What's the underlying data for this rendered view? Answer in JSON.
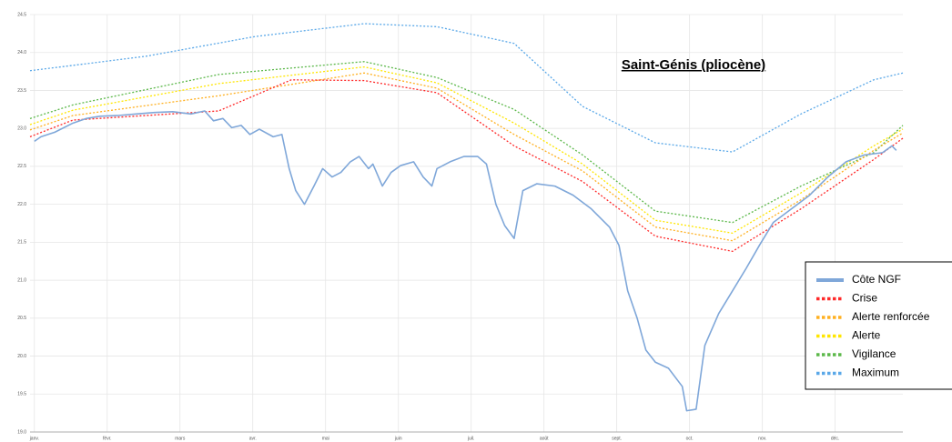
{
  "chart_data": {
    "type": "line",
    "title": "Saint-Génis (pliocène)",
    "xlim": [
      -0.06,
      11.93
    ],
    "xticks": [
      {
        "value": 0,
        "label": "janv."
      },
      {
        "value": 1,
        "label": "févr."
      },
      {
        "value": 2,
        "label": "mars"
      },
      {
        "value": 3,
        "label": "avr."
      },
      {
        "value": 4,
        "label": "mai"
      },
      {
        "value": 5,
        "label": "juin"
      },
      {
        "value": 6,
        "label": "juil."
      },
      {
        "value": 7,
        "label": "août"
      },
      {
        "value": 8,
        "label": "sept."
      },
      {
        "value": 9,
        "label": "oct."
      },
      {
        "value": 10,
        "label": "nov."
      },
      {
        "value": 11,
        "label": "déc."
      }
    ],
    "ylim": [
      19.0,
      24.5
    ],
    "yticks": [
      {
        "value": 19,
        "label": "19.0"
      },
      19.5,
      {
        "value": 20,
        "label": "20.0"
      },
      20.5,
      {
        "value": 21,
        "label": "21.0"
      },
      21.5,
      {
        "value": 22,
        "label": "22.0"
      },
      22.5,
      {
        "value": 23,
        "label": "23.0"
      },
      23.5,
      {
        "value": 24,
        "label": "24.0"
      },
      24.5
    ],
    "grid": true,
    "legend": "lower right",
    "series": [
      {
        "name": "Côte NGF",
        "color": "#7fa7d9",
        "style": "solid",
        "x": [
          0,
          0.09,
          0.28,
          0.53,
          0.71,
          0.9,
          1.15,
          1.4,
          1.65,
          1.9,
          2.15,
          2.34,
          2.46,
          2.59,
          2.71,
          2.84,
          2.96,
          3.09,
          3.28,
          3.4,
          3.5,
          3.59,
          3.71,
          3.84,
          3.96,
          4.09,
          4.21,
          4.34,
          4.46,
          4.59,
          4.65,
          4.78,
          4.9,
          5.03,
          5.21,
          5.34,
          5.46,
          5.53,
          5.71,
          5.9,
          6.09,
          6.21,
          6.34,
          6.46,
          6.59,
          6.71,
          6.9,
          7.15,
          7.4,
          7.65,
          7.9,
          8.03,
          8.15,
          8.28,
          8.4,
          8.53,
          8.71,
          8.9,
          8.96,
          9.09,
          9.21,
          9.4,
          9.59,
          9.78,
          9.96,
          10.15,
          10.4,
          10.65,
          10.9,
          11.15,
          11.4,
          11.65,
          11.78,
          11.84
        ],
        "values": [
          22.83,
          22.89,
          22.95,
          23.07,
          23.13,
          23.16,
          23.17,
          23.19,
          23.21,
          23.22,
          23.19,
          23.23,
          23.1,
          23.13,
          23.01,
          23.04,
          22.92,
          22.99,
          22.89,
          22.92,
          22.47,
          22.18,
          22.0,
          22.24,
          22.47,
          22.36,
          22.42,
          22.56,
          22.63,
          22.47,
          22.53,
          22.24,
          22.42,
          22.51,
          22.56,
          22.36,
          22.24,
          22.47,
          22.56,
          22.63,
          22.63,
          22.53,
          22.0,
          21.72,
          21.55,
          22.18,
          22.27,
          22.24,
          22.12,
          21.94,
          21.7,
          21.46,
          20.86,
          20.5,
          20.08,
          19.92,
          19.84,
          19.6,
          19.28,
          19.3,
          20.14,
          20.56,
          20.86,
          21.16,
          21.46,
          21.76,
          21.94,
          22.12,
          22.36,
          22.56,
          22.65,
          22.68,
          22.77,
          22.71
        ]
      },
      {
        "name": "Crise",
        "color": "#ff2a2a",
        "style": "dotted",
        "x": [
          -0.06,
          0.53,
          2.53,
          3.53,
          4.53,
          5.53,
          6.59,
          7.53,
          8.53,
          9.59,
          10.53,
          11.53,
          11.93
        ],
        "values": [
          22.89,
          23.11,
          23.23,
          23.64,
          23.63,
          23.47,
          22.77,
          22.3,
          21.58,
          21.38,
          21.94,
          22.59,
          22.87
        ]
      },
      {
        "name": "Alerte renforcée",
        "color": "#ffb020",
        "style": "dotted",
        "x": [
          -0.06,
          0.53,
          2.53,
          4.53,
          5.53,
          6.59,
          7.53,
          8.53,
          9.59,
          10.53,
          11.53,
          11.93
        ],
        "values": [
          22.98,
          23.17,
          23.43,
          23.73,
          23.53,
          22.92,
          22.44,
          21.7,
          21.52,
          22.06,
          22.71,
          22.94
        ]
      },
      {
        "name": "Alerte",
        "color": "#ffe600",
        "style": "dotted",
        "x": [
          -0.06,
          0.53,
          2.53,
          4.53,
          5.53,
          6.59,
          7.53,
          8.53,
          9.59,
          10.53,
          11.53,
          11.93
        ],
        "values": [
          23.05,
          23.24,
          23.59,
          23.81,
          23.6,
          23.07,
          22.53,
          21.79,
          21.62,
          22.15,
          22.77,
          22.99
        ]
      },
      {
        "name": "Vigilance",
        "color": "#5cb84a",
        "style": "dotted",
        "x": [
          -0.06,
          0.53,
          2.53,
          4.53,
          5.53,
          6.59,
          7.53,
          8.53,
          9.59,
          10.53,
          11.53,
          11.93
        ],
        "values": [
          23.13,
          23.31,
          23.71,
          23.88,
          23.67,
          23.25,
          22.65,
          21.91,
          21.76,
          22.24,
          22.68,
          23.04
        ]
      },
      {
        "name": "Maximum",
        "color": "#5aa8e8",
        "style": "dotted",
        "x": [
          -0.06,
          1.53,
          3.03,
          4.53,
          5.53,
          6.59,
          7.53,
          8.53,
          9.59,
          10.53,
          11.53,
          11.93
        ],
        "values": [
          23.76,
          23.95,
          24.21,
          24.38,
          24.34,
          24.12,
          23.29,
          22.81,
          22.69,
          23.19,
          23.64,
          23.73
        ]
      }
    ]
  }
}
